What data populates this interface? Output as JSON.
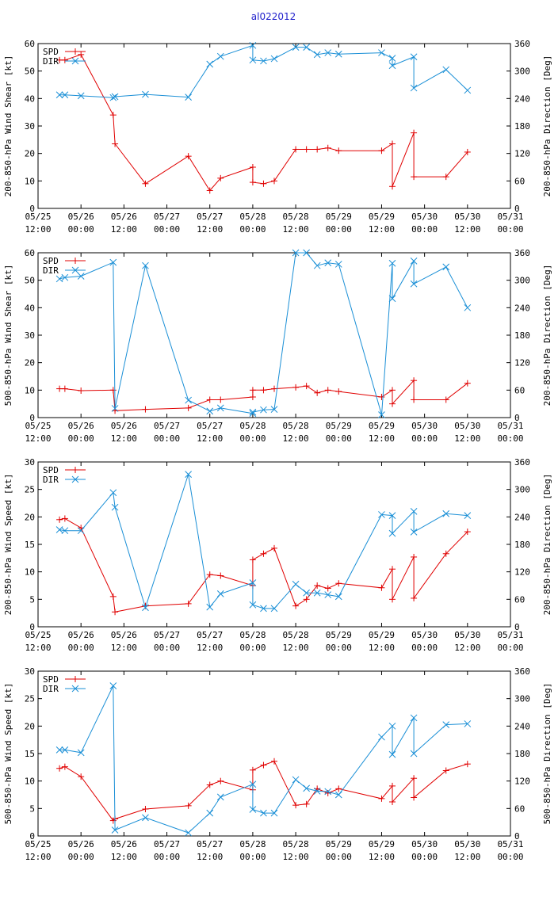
{
  "page_title": "al022012",
  "colors": {
    "spd": "#e00000",
    "dir": "#1a8fd6",
    "title": "#2222cc"
  },
  "x_ticks": [
    [
      "05/25",
      "12:00"
    ],
    [
      "05/26",
      "00:00"
    ],
    [
      "05/26",
      "12:00"
    ],
    [
      "05/27",
      "00:00"
    ],
    [
      "05/27",
      "12:00"
    ],
    [
      "05/28",
      "00:00"
    ],
    [
      "05/28",
      "12:00"
    ],
    [
      "05/29",
      "00:00"
    ],
    [
      "05/29",
      "12:00"
    ],
    [
      "05/30",
      "00:00"
    ],
    [
      "05/30",
      "12:00"
    ],
    [
      "05/31",
      "00:00"
    ]
  ],
  "chart_data": [
    {
      "type": "line",
      "ylabel": "200-850-hPa Wind Shear [kt]",
      "y2label": "200-850-hPa Direction [Deg]",
      "ylim": [
        0,
        60
      ],
      "yticks": [
        0,
        10,
        20,
        30,
        40,
        50,
        60
      ],
      "y2lim": [
        0,
        360
      ],
      "y2ticks": [
        0,
        60,
        120,
        180,
        240,
        300,
        360
      ],
      "xlim": [
        0,
        132
      ],
      "series": [
        {
          "name": "SPD",
          "axis": "left",
          "marker": "+",
          "x": [
            6,
            7.5,
            12,
            21,
            21.5,
            30,
            42,
            48,
            51,
            60,
            60,
            63,
            66,
            72,
            75,
            78,
            81,
            84,
            96,
            99,
            99,
            105,
            105,
            114,
            120
          ],
          "y": [
            54,
            54,
            56,
            34,
            23.5,
            9,
            19,
            6.5,
            11,
            15,
            9.5,
            9,
            10,
            21.5,
            21.5,
            21.5,
            22,
            21,
            21,
            23.5,
            8,
            27.5,
            11.5,
            11.5,
            20.5
          ]
        },
        {
          "name": "DIR",
          "axis": "right",
          "marker": "x",
          "x": [
            6,
            7.5,
            12,
            21,
            21.5,
            30,
            42,
            48,
            51,
            60,
            60,
            63,
            66,
            72,
            75,
            78,
            81,
            84,
            96,
            99,
            99,
            105,
            105,
            114,
            120
          ],
          "y": [
            248,
            248,
            246,
            242,
            244,
            249,
            243,
            315,
            332,
            356,
            324,
            322,
            327,
            352,
            352,
            336,
            340,
            337,
            340,
            328,
            312,
            331,
            263,
            303,
            258
          ]
        }
      ]
    },
    {
      "type": "line",
      "ylabel": "500-850-hPa Wind Shear [kt]",
      "y2label": "200-850-hPa Direction [Deg]",
      "ylim": [
        0,
        60
      ],
      "yticks": [
        0,
        10,
        20,
        30,
        40,
        50,
        60
      ],
      "y2lim": [
        0,
        360
      ],
      "y2ticks": [
        0,
        60,
        120,
        180,
        240,
        300,
        360
      ],
      "xlim": [
        0,
        132
      ],
      "series": [
        {
          "name": "SPD",
          "axis": "left",
          "marker": "+",
          "x": [
            6,
            7.5,
            12,
            21,
            21.5,
            30,
            42,
            48,
            51,
            60,
            60,
            63,
            66,
            72,
            75,
            78,
            81,
            84,
            96,
            99,
            99,
            105,
            105,
            114,
            120
          ],
          "y": [
            10.5,
            10.5,
            9.8,
            10,
            2.5,
            3,
            3.5,
            6.5,
            6.5,
            7.5,
            10,
            10,
            10.5,
            11,
            11.5,
            9,
            10,
            9.5,
            7.5,
            10,
            5,
            13.5,
            6.5,
            6.5,
            12.5
          ]
        },
        {
          "name": "DIR",
          "axis": "right",
          "marker": "x",
          "x": [
            6,
            7.5,
            12,
            21,
            21.5,
            30,
            42,
            48,
            51,
            60,
            60,
            63,
            66,
            72,
            75,
            78,
            81,
            84,
            96,
            99,
            99,
            105,
            105,
            114,
            120
          ],
          "y": [
            303,
            306,
            309,
            339,
            20,
            332,
            38,
            14,
            21,
            9,
            12,
            17,
            18,
            360,
            360,
            332,
            338,
            335,
            6,
            337,
            260,
            342,
            292,
            329,
            240
          ]
        }
      ]
    },
    {
      "type": "line",
      "ylabel": "200-850-hPa Wind Speed [kt]",
      "y2label": "200-850-hPa Direction [Deg]",
      "ylim": [
        0,
        30
      ],
      "yticks": [
        0,
        5,
        10,
        15,
        20,
        25,
        30
      ],
      "y2lim": [
        0,
        360
      ],
      "y2ticks": [
        0,
        60,
        120,
        180,
        240,
        300,
        360
      ],
      "xlim": [
        0,
        132
      ],
      "series": [
        {
          "name": "SPD",
          "axis": "left",
          "marker": "+",
          "x": [
            6,
            7.5,
            12,
            21,
            21.5,
            30,
            42,
            48,
            51,
            60,
            60,
            63,
            66,
            72,
            75,
            78,
            81,
            84,
            96,
            99,
            99,
            105,
            105,
            114,
            120
          ],
          "y": [
            19.5,
            19.7,
            18,
            5.5,
            2.7,
            3.8,
            4.2,
            9.5,
            9.3,
            7.5,
            12.2,
            13.3,
            14.3,
            3.8,
            5,
            7.5,
            7,
            7.9,
            7.1,
            10.5,
            5,
            12.7,
            5.2,
            13.3,
            17.3
          ]
        },
        {
          "name": "DIR",
          "axis": "right",
          "marker": "x",
          "x": [
            6,
            7.5,
            12,
            21,
            21.5,
            30,
            42,
            48,
            51,
            60,
            60,
            63,
            66,
            72,
            75,
            78,
            81,
            84,
            96,
            99,
            99,
            105,
            105,
            114,
            120
          ],
          "y": [
            212,
            210,
            210,
            293,
            261,
            42,
            333,
            43,
            72,
            96,
            48,
            40,
            40,
            93,
            74,
            74,
            70,
            66,
            245,
            243,
            204,
            252,
            207,
            247,
            243
          ]
        }
      ]
    },
    {
      "type": "line",
      "ylabel": "500-850-hPa Wind Speed [kt]",
      "y2label": "500-850-hPa Direction [Deg]",
      "ylim": [
        0,
        30
      ],
      "yticks": [
        0,
        5,
        10,
        15,
        20,
        25,
        30
      ],
      "y2lim": [
        0,
        360
      ],
      "y2ticks": [
        0,
        60,
        120,
        180,
        240,
        300,
        360
      ],
      "xlim": [
        0,
        132
      ],
      "series": [
        {
          "name": "SPD",
          "axis": "left",
          "marker": "+",
          "x": [
            6,
            7.5,
            12,
            21,
            21.5,
            30,
            42,
            48,
            51,
            60,
            60,
            63,
            66,
            72,
            75,
            78,
            81,
            84,
            96,
            99,
            99,
            105,
            105,
            114,
            120
          ],
          "y": [
            12.3,
            12.6,
            10.8,
            2.8,
            3.1,
            4.9,
            5.5,
            9.3,
            10,
            8.4,
            12,
            12.9,
            13.6,
            5.6,
            5.8,
            8.6,
            7.8,
            8.6,
            6.8,
            9.1,
            6.2,
            10.5,
            7,
            11.9,
            13.1
          ]
        },
        {
          "name": "DIR",
          "axis": "right",
          "marker": "x",
          "x": [
            6,
            7.5,
            12,
            21,
            21.5,
            30,
            42,
            48,
            51,
            60,
            60,
            63,
            66,
            72,
            75,
            78,
            81,
            84,
            96,
            99,
            99,
            105,
            105,
            114,
            120
          ],
          "y": [
            188,
            188,
            182,
            328,
            13,
            40,
            7,
            50,
            85,
            113,
            58,
            50,
            50,
            123,
            104,
            98,
            97,
            90,
            216,
            240,
            178,
            258,
            180,
            243,
            245
          ]
        }
      ]
    }
  ]
}
